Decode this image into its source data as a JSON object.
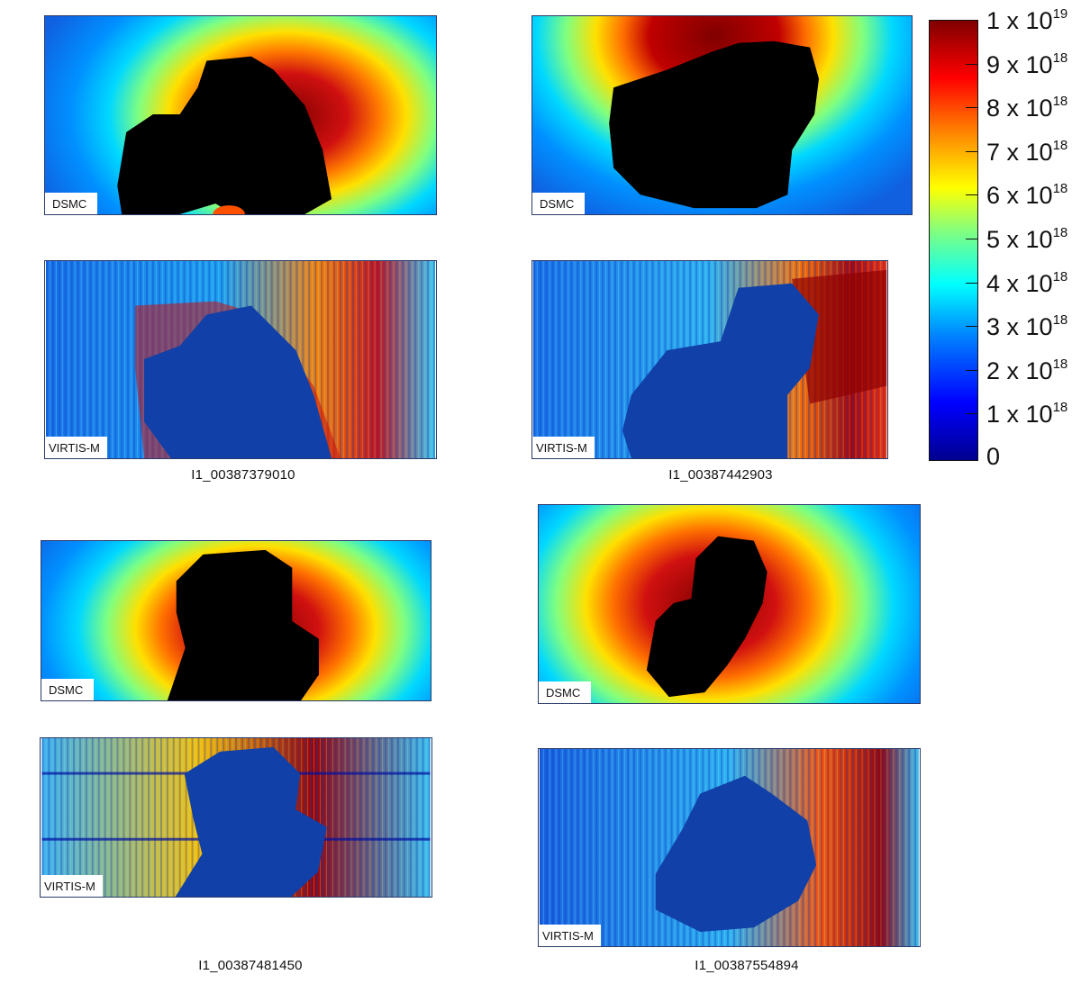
{
  "panels": [
    {
      "id": "p1-dsmc",
      "kind": "dsmc",
      "label": "DSMC"
    },
    {
      "id": "p1-virtis",
      "kind": "virtis",
      "label": "VIRTIS-M"
    },
    {
      "id": "p2-dsmc",
      "kind": "dsmc",
      "label": "DSMC"
    },
    {
      "id": "p2-virtis",
      "kind": "virtis",
      "label": "VIRTIS-M"
    },
    {
      "id": "p3-dsmc",
      "kind": "dsmc",
      "label": "DSMC"
    },
    {
      "id": "p3-virtis",
      "kind": "virtis",
      "label": "VIRTIS-M"
    },
    {
      "id": "p4-dsmc",
      "kind": "dsmc",
      "label": "DSMC"
    },
    {
      "id": "p4-virtis",
      "kind": "virtis",
      "label": "VIRTIS-M"
    }
  ],
  "captions": [
    "I1_00387379010",
    "I1_00387442903",
    "I1_00387481450",
    "I1_00387554894"
  ],
  "colorbar": {
    "labels": [
      {
        "mantissa": "1 x 10",
        "exp": "19"
      },
      {
        "mantissa": "9 x 10",
        "exp": "18"
      },
      {
        "mantissa": "8 x 10",
        "exp": "18"
      },
      {
        "mantissa": "7 x 10",
        "exp": "18"
      },
      {
        "mantissa": "6 x 10",
        "exp": "18"
      },
      {
        "mantissa": "5 x 10",
        "exp": "18"
      },
      {
        "mantissa": "4 x 10",
        "exp": "18"
      },
      {
        "mantissa": "3 x 10",
        "exp": "18"
      },
      {
        "mantissa": "2 x 10",
        "exp": "18"
      },
      {
        "mantissa": "1 x 10",
        "exp": "18"
      },
      {
        "mantissa": "0",
        "exp": ""
      }
    ],
    "colors": [
      "#00008f",
      "#0000ff",
      "#0080ff",
      "#00ffff",
      "#80ff80",
      "#ffff00",
      "#ff8000",
      "#ff0000",
      "#800000"
    ]
  }
}
